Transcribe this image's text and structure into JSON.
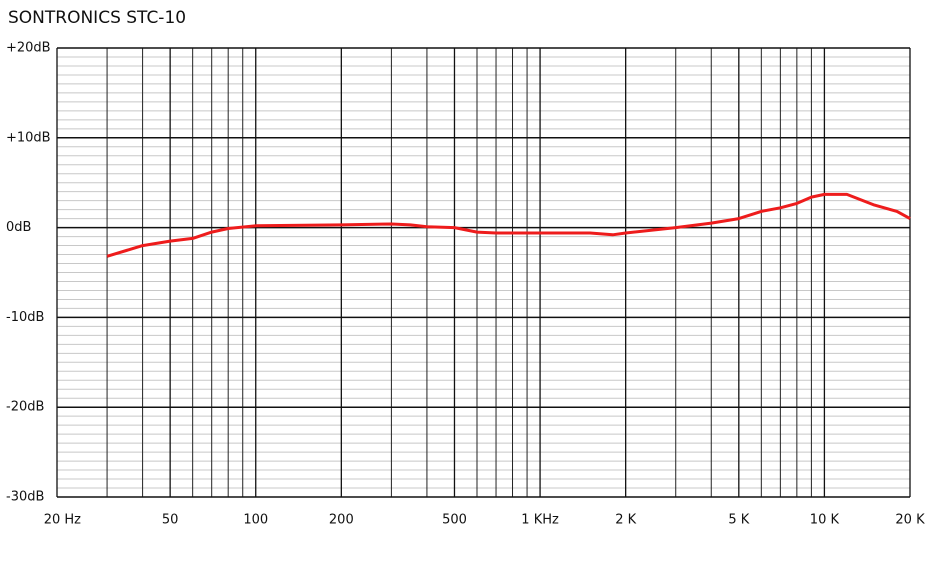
{
  "chart_data": {
    "type": "line",
    "title": "SONTRONICS STC-10",
    "x_scale": "log",
    "x": [
      30,
      40,
      50,
      60,
      70,
      80,
      100,
      200,
      300,
      350,
      400,
      500,
      600,
      700,
      1000,
      1500,
      1800,
      2000,
      3000,
      4000,
      5000,
      6000,
      7000,
      8000,
      9000,
      10000,
      12000,
      15000,
      18000,
      20000
    ],
    "series": [
      {
        "name": "STC-10",
        "color": "#ee1c1c",
        "values": [
          -3.2,
          -2.0,
          -1.5,
          -1.2,
          -0.5,
          -0.1,
          0.2,
          0.3,
          0.4,
          0.3,
          0.1,
          0,
          -0.5,
          -0.6,
          -0.6,
          -0.6,
          -0.8,
          -0.6,
          0,
          0.5,
          1.0,
          1.8,
          2.2,
          2.7,
          3.4,
          3.7,
          3.7,
          2.5,
          1.8,
          1.0
        ]
      }
    ],
    "xlim": [
      20,
      20000
    ],
    "xticks": [
      {
        "value": 20,
        "label": "20 Hz"
      },
      50,
      100,
      200,
      500,
      {
        "value": 1000,
        "label": "1 KHz"
      },
      {
        "value": 2000,
        "label": "2 K"
      },
      {
        "value": 5000,
        "label": "5 K"
      },
      {
        "value": 10000,
        "label": "10 K"
      },
      {
        "value": 20000,
        "label": "20 K"
      }
    ],
    "x_minor_ticks": [
      30,
      40,
      60,
      70,
      80,
      90,
      300,
      400,
      600,
      700,
      800,
      900,
      3000,
      4000,
      6000,
      7000,
      8000,
      9000
    ],
    "ylim": [
      -30,
      20
    ],
    "yticks": [
      {
        "value": 20,
        "label": "+20dB"
      },
      {
        "value": 10,
        "label": "+10dB"
      },
      {
        "value": 0,
        "label": "0dB"
      },
      {
        "value": -10,
        "label": "-10dB"
      },
      {
        "value": -20,
        "label": "-20dB"
      },
      {
        "value": -30,
        "label": "-30dB"
      }
    ],
    "y_minor_ticks": [
      19,
      18,
      17,
      16,
      15,
      14,
      13,
      12,
      11,
      9,
      8,
      7,
      6,
      5,
      4,
      3,
      2,
      1,
      -1,
      -2,
      -3,
      -4,
      -5,
      -6,
      -7,
      -8,
      -9,
      -11,
      -12,
      -13,
      -14,
      -15,
      -16,
      -17,
      -18,
      -19,
      -21,
      -22,
      -23,
      -24,
      -25,
      -26,
      -27,
      -28,
      -29
    ],
    "grid": true
  }
}
